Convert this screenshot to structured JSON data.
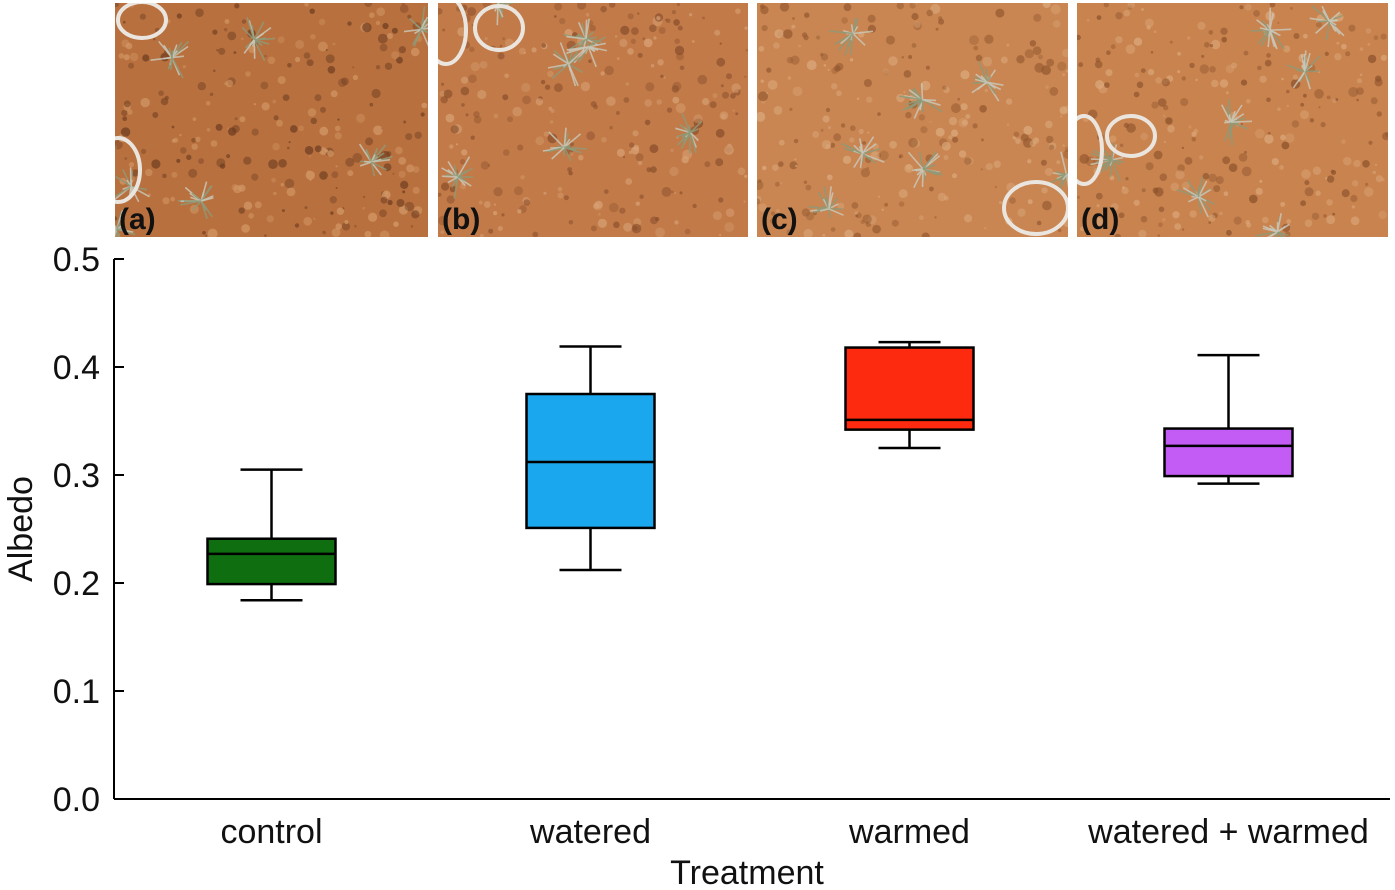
{
  "panels": [
    {
      "label": "(a)",
      "soil_color": "#b8703e",
      "dark_color": "#6e3d20",
      "light_color": "#d49a68"
    },
    {
      "label": "(b)",
      "soil_color": "#c27a48",
      "dark_color": "#8a4f2c",
      "light_color": "#d8a275"
    },
    {
      "label": "(c)",
      "soil_color": "#c98552",
      "dark_color": "#94592f",
      "light_color": "#dcab7d"
    },
    {
      "label": "(d)",
      "soil_color": "#c9834f",
      "dark_color": "#8c522b",
      "light_color": "#dca97b"
    }
  ],
  "chart_data": {
    "type": "boxplot",
    "xlabel": "Treatment",
    "ylabel": "Albedo",
    "ylim": [
      0.0,
      0.5
    ],
    "yticks": [
      "0.0",
      "0.1",
      "0.2",
      "0.3",
      "0.4",
      "0.5"
    ],
    "categories": [
      "control",
      "watered",
      "warmed",
      "watered + warmed"
    ],
    "boxes": [
      {
        "category": "control",
        "whisker_low": 0.184,
        "q1": 0.199,
        "median": 0.227,
        "q3": 0.241,
        "whisker_high": 0.305,
        "color": "#0f6e0f"
      },
      {
        "category": "watered",
        "whisker_low": 0.212,
        "q1": 0.251,
        "median": 0.312,
        "q3": 0.375,
        "whisker_high": 0.419,
        "color": "#1aa7ee"
      },
      {
        "category": "warmed",
        "whisker_low": 0.325,
        "q1": 0.342,
        "median": 0.351,
        "q3": 0.418,
        "whisker_high": 0.423,
        "color": "#fd2a0f"
      },
      {
        "category": "watered + warmed",
        "whisker_low": 0.292,
        "q1": 0.299,
        "median": 0.327,
        "q3": 0.343,
        "whisker_high": 0.411,
        "color": "#c35cf5"
      }
    ]
  }
}
